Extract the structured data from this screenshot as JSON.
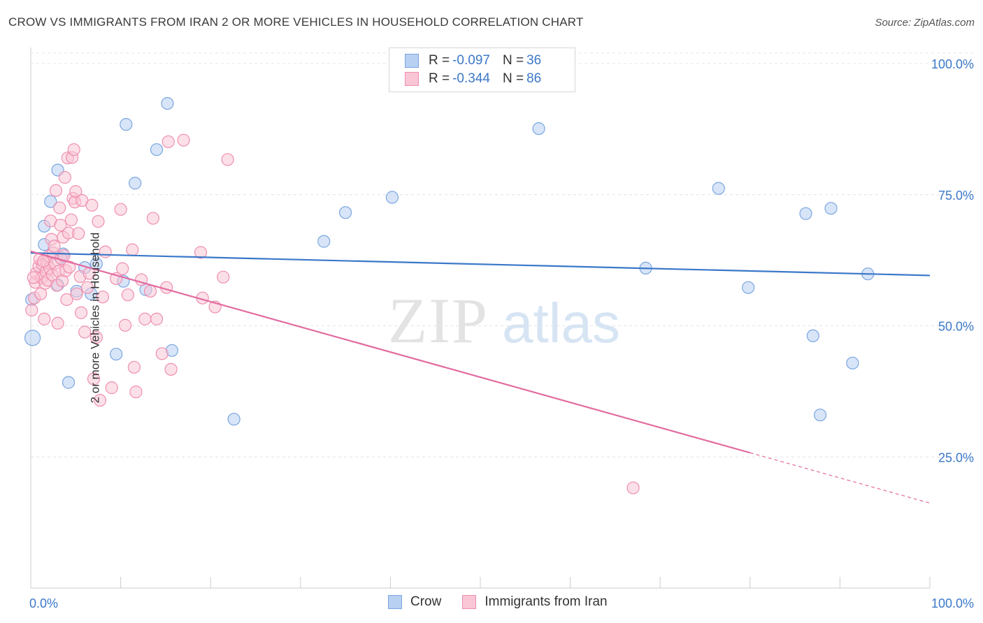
{
  "title": "CROW VS IMMIGRANTS FROM IRAN 2 OR MORE VEHICLES IN HOUSEHOLD CORRELATION CHART",
  "source": "Source: ZipAtlas.com",
  "watermark": {
    "zip": "ZIP",
    "atlas": "atlas"
  },
  "legend_top": [
    {
      "r_label": "R =",
      "r_value": "-0.097",
      "n_label": "N =",
      "n_value": "36",
      "fill": "#b8d0f2",
      "stroke": "#7aa6e0"
    },
    {
      "r_label": "R =",
      "r_value": "-0.344",
      "n_label": "N =",
      "n_value": "86",
      "fill": "#f9c6d6",
      "stroke": "#ee8fb0"
    }
  ],
  "chart_data": {
    "type": "scatter",
    "ylabel": "2 or more Vehicles in Household",
    "x_tick_labels": {
      "left": "0.0%",
      "right": "100.0%"
    },
    "y_ticks": [
      {
        "value": 100,
        "label": "100.0%"
      },
      {
        "value": 75,
        "label": "75.0%"
      },
      {
        "value": 50,
        "label": "50.0%"
      },
      {
        "value": 25,
        "label": "25.0%"
      }
    ],
    "xlim": [
      0,
      100
    ],
    "ylim": [
      0,
      102
    ],
    "grid": "horizontal dashed",
    "series": [
      {
        "name": "Crow",
        "color": "#3a78c9",
        "fill": "#b8d0f2",
        "trend": {
          "x": [
            0,
            100
          ],
          "y": [
            63.9,
            59.6
          ]
        },
        "points": [
          [
            0.2,
            47.7
          ],
          [
            1.5,
            69.0
          ],
          [
            1.5,
            65.5
          ],
          [
            2.2,
            73.7
          ],
          [
            3.0,
            57.8
          ],
          [
            3.0,
            79.7
          ],
          [
            3.3,
            63.0
          ],
          [
            3.6,
            63.7
          ],
          [
            4.2,
            39.2
          ],
          [
            5.1,
            56.6
          ],
          [
            6.0,
            61.1
          ],
          [
            6.7,
            56.1
          ],
          [
            7.3,
            61.8
          ],
          [
            9.5,
            44.6
          ],
          [
            10.3,
            58.5
          ],
          [
            10.6,
            88.4
          ],
          [
            11.6,
            77.2
          ],
          [
            12.8,
            56.9
          ],
          [
            14.0,
            83.6
          ],
          [
            15.2,
            92.4
          ],
          [
            15.7,
            45.3
          ],
          [
            22.6,
            32.2
          ],
          [
            32.6,
            66.1
          ],
          [
            35.0,
            71.6
          ],
          [
            40.2,
            74.5
          ],
          [
            56.5,
            87.6
          ],
          [
            68.4,
            61.0
          ],
          [
            76.5,
            76.2
          ],
          [
            79.8,
            57.3
          ],
          [
            86.2,
            71.4
          ],
          [
            87.0,
            48.1
          ],
          [
            87.8,
            33.0
          ],
          [
            89.0,
            72.4
          ],
          [
            91.4,
            42.9
          ],
          [
            93.1,
            59.9
          ],
          [
            0.1,
            55.0
          ]
        ]
      },
      {
        "name": "Immigrants from Iran",
        "color": "#e26aa0",
        "fill": "#f9c6d6",
        "trend": {
          "x": [
            0,
            80
          ],
          "y": [
            64.2,
            25.8
          ]
        },
        "trend_dashed": {
          "x": [
            80,
            100
          ],
          "y": [
            25.8,
            16.2
          ]
        },
        "points": [
          [
            0.1,
            53.0
          ],
          [
            0.4,
            55.3
          ],
          [
            0.5,
            58.3
          ],
          [
            0.6,
            60.0
          ],
          [
            0.9,
            61.4
          ],
          [
            1.0,
            62.7
          ],
          [
            1.1,
            56.1
          ],
          [
            1.2,
            59.1
          ],
          [
            1.3,
            61.7
          ],
          [
            1.5,
            51.3
          ],
          [
            1.6,
            58.1
          ],
          [
            1.7,
            60.3
          ],
          [
            1.8,
            62.0
          ],
          [
            1.9,
            58.7
          ],
          [
            2.0,
            63.3
          ],
          [
            2.1,
            61.0
          ],
          [
            2.2,
            70.0
          ],
          [
            2.3,
            66.5
          ],
          [
            2.4,
            59.7
          ],
          [
            2.5,
            63.9
          ],
          [
            2.6,
            65.2
          ],
          [
            2.7,
            61.9
          ],
          [
            2.8,
            75.8
          ],
          [
            2.9,
            57.7
          ],
          [
            3.0,
            50.5
          ],
          [
            3.1,
            60.4
          ],
          [
            3.2,
            72.5
          ],
          [
            3.3,
            69.2
          ],
          [
            3.4,
            62.8
          ],
          [
            3.5,
            58.6
          ],
          [
            3.6,
            66.9
          ],
          [
            3.7,
            63.4
          ],
          [
            3.8,
            78.3
          ],
          [
            3.9,
            60.5
          ],
          [
            4.0,
            55.0
          ],
          [
            4.1,
            82.0
          ],
          [
            4.2,
            67.7
          ],
          [
            4.3,
            61.2
          ],
          [
            4.5,
            70.2
          ],
          [
            4.6,
            82.1
          ],
          [
            4.7,
            74.3
          ],
          [
            4.8,
            83.6
          ],
          [
            4.9,
            73.6
          ],
          [
            5.0,
            75.6
          ],
          [
            5.1,
            56.1
          ],
          [
            5.3,
            67.6
          ],
          [
            5.5,
            59.4
          ],
          [
            5.6,
            52.5
          ],
          [
            5.7,
            73.9
          ],
          [
            6.0,
            48.8
          ],
          [
            6.3,
            57.3
          ],
          [
            6.5,
            60.0
          ],
          [
            6.8,
            73.0
          ],
          [
            7.0,
            39.9
          ],
          [
            7.3,
            47.8
          ],
          [
            7.5,
            69.9
          ],
          [
            7.7,
            35.8
          ],
          [
            8.0,
            55.5
          ],
          [
            8.3,
            64.1
          ],
          [
            9.0,
            38.2
          ],
          [
            9.5,
            59.0
          ],
          [
            10.0,
            72.2
          ],
          [
            10.2,
            60.9
          ],
          [
            10.5,
            50.1
          ],
          [
            10.8,
            55.9
          ],
          [
            11.3,
            64.5
          ],
          [
            11.5,
            42.1
          ],
          [
            11.7,
            37.4
          ],
          [
            12.3,
            58.8
          ],
          [
            12.7,
            51.3
          ],
          [
            13.3,
            56.6
          ],
          [
            13.6,
            70.5
          ],
          [
            14.0,
            51.3
          ],
          [
            14.6,
            44.7
          ],
          [
            15.1,
            57.3
          ],
          [
            15.3,
            85.1
          ],
          [
            15.6,
            41.7
          ],
          [
            17.0,
            85.4
          ],
          [
            18.9,
            64.0
          ],
          [
            19.1,
            55.3
          ],
          [
            20.5,
            53.6
          ],
          [
            21.4,
            59.3
          ],
          [
            21.9,
            81.7
          ],
          [
            67.0,
            19.1
          ],
          [
            0.3,
            59.2
          ],
          [
            1.4,
            62.3
          ]
        ]
      }
    ]
  }
}
